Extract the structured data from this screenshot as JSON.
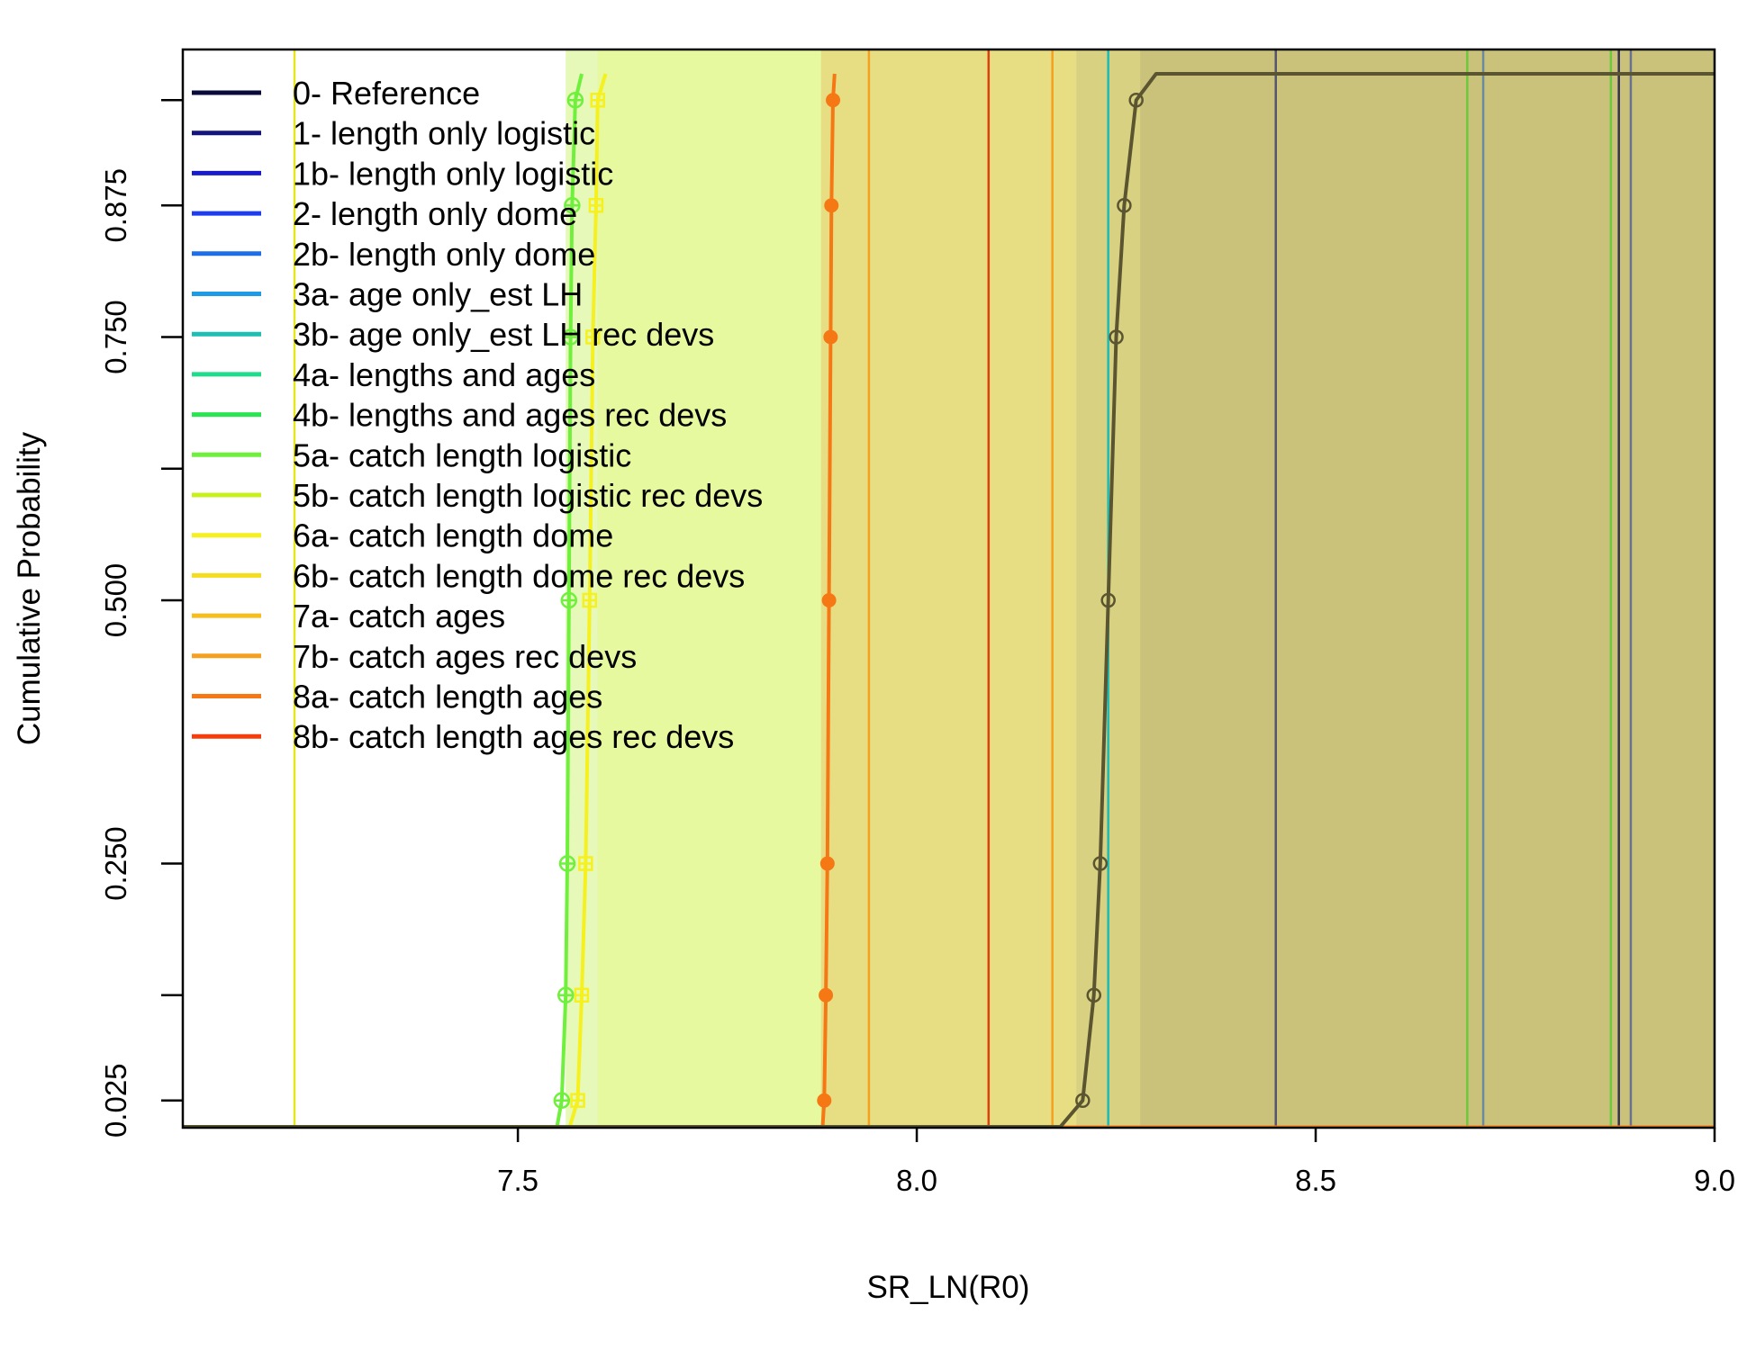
{
  "chart_data": {
    "type": "line",
    "title": "",
    "xlabel": "SR_LN(R0)",
    "ylabel": "Cumulative Probability",
    "xlim": [
      7.08,
      9.0
    ],
    "ylim": [
      0.0,
      1.0
    ],
    "xticks": [
      {
        "value": 7.5,
        "label": "7.5"
      },
      {
        "value": 8.0,
        "label": "8.0"
      },
      {
        "value": 8.5,
        "label": "8.5"
      },
      {
        "value": 9.0,
        "label": "9.0"
      }
    ],
    "yticks": [
      {
        "value": 0.025,
        "label": "0.025"
      },
      {
        "value": 0.125,
        "label": ""
      },
      {
        "value": 0.25,
        "label": "0.250"
      },
      {
        "value": 0.5,
        "label": "0.500"
      },
      {
        "value": 0.625,
        "label": ""
      },
      {
        "value": 0.75,
        "label": "0.750"
      },
      {
        "value": 0.875,
        "label": "0.875"
      },
      {
        "value": 0.975,
        "label": ""
      }
    ],
    "legend_position": "top-left",
    "legend": [
      {
        "label": "0- Reference",
        "color": "#0b0b3b"
      },
      {
        "label": "1- length only logistic",
        "color": "#14147a"
      },
      {
        "label": "1b- length only logistic",
        "color": "#1a1acd"
      },
      {
        "label": "2- length only dome",
        "color": "#1e3cf0"
      },
      {
        "label": "2b- length only dome",
        "color": "#1e6ee8"
      },
      {
        "label": "3a- age only_est LH",
        "color": "#1e9be6"
      },
      {
        "label": "3b- age only_est LH rec devs",
        "color": "#1ebeb4"
      },
      {
        "label": "4a- lengths and ages",
        "color": "#1edc8c"
      },
      {
        "label": "4b- lengths and ages rec devs",
        "color": "#28e650"
      },
      {
        "label": "5a- catch length logistic",
        "color": "#6ef03c"
      },
      {
        "label": "5b- catch length logistic rec devs",
        "color": "#c8f01e"
      },
      {
        "label": "6a- catch length dome",
        "color": "#f5f01e"
      },
      {
        "label": "6b- catch length dome rec devs",
        "color": "#f5dc1e"
      },
      {
        "label": "7a- catch ages",
        "color": "#f5be1e"
      },
      {
        "label": "7b- catch ages rec devs",
        "color": "#f5a01e"
      },
      {
        "label": "8a- catch length ages",
        "color": "#f57814"
      },
      {
        "label": "8b- catch length ages rec devs",
        "color": "#f53c0a"
      }
    ],
    "shaded_regions": [
      {
        "x0": 7.56,
        "x1": 9.0,
        "color": "#ddf7a0",
        "opacity": 0.75
      },
      {
        "x0": 7.6,
        "x1": 9.0,
        "color": "#e6f88c",
        "opacity": 0.6
      },
      {
        "x0": 7.88,
        "x1": 9.0,
        "color": "#e8c870",
        "opacity": 0.55
      },
      {
        "x0": 8.2,
        "x1": 9.0,
        "color": "#c8c080",
        "opacity": 0.45
      },
      {
        "x0": 8.28,
        "x1": 9.0,
        "color": "#b8b070",
        "opacity": 0.45
      }
    ],
    "vertical_lines": [
      {
        "x": 7.22,
        "color": "#e6e61e"
      },
      {
        "x": 7.94,
        "color": "#f5a01e"
      },
      {
        "x": 8.09,
        "color": "#e04010"
      },
      {
        "x": 8.17,
        "color": "#f5a01e"
      },
      {
        "x": 8.24,
        "color": "#6a8aa0"
      },
      {
        "x": 8.24,
        "color": "#1ebeb4"
      },
      {
        "x": 8.45,
        "color": "#555570"
      },
      {
        "x": 8.69,
        "color": "#6ec83c"
      },
      {
        "x": 8.71,
        "color": "#6a8aa0"
      },
      {
        "x": 8.87,
        "color": "#6ec83c"
      },
      {
        "x": 8.88,
        "color": "#333350"
      },
      {
        "x": 8.895,
        "color": "#6a7090"
      }
    ],
    "series": [
      {
        "name": "5a- catch length logistic",
        "color": "#6ef03c",
        "marker": "circle-plus",
        "points": [
          {
            "x": 7.549,
            "y": 0.0
          },
          {
            "x": 7.555,
            "y": 0.025
          },
          {
            "x": 7.56,
            "y": 0.125
          },
          {
            "x": 7.562,
            "y": 0.25
          },
          {
            "x": 7.564,
            "y": 0.5
          },
          {
            "x": 7.566,
            "y": 0.75
          },
          {
            "x": 7.568,
            "y": 0.875
          },
          {
            "x": 7.572,
            "y": 0.975
          },
          {
            "x": 7.58,
            "y": 1.0
          }
        ]
      },
      {
        "name": "6a- catch length dome",
        "color": "#f5f01e",
        "marker": "square-plus",
        "points": [
          {
            "x": 7.565,
            "y": 0.0
          },
          {
            "x": 7.575,
            "y": 0.025
          },
          {
            "x": 7.58,
            "y": 0.125
          },
          {
            "x": 7.585,
            "y": 0.25
          },
          {
            "x": 7.59,
            "y": 0.5
          },
          {
            "x": 7.594,
            "y": 0.75
          },
          {
            "x": 7.598,
            "y": 0.875
          },
          {
            "x": 7.6,
            "y": 0.975
          },
          {
            "x": 7.61,
            "y": 1.0
          }
        ]
      },
      {
        "name": "8a- catch length ages",
        "color": "#f57814",
        "marker": "filled-circle",
        "points": [
          {
            "x": 7.882,
            "y": 0.0
          },
          {
            "x": 7.884,
            "y": 0.025
          },
          {
            "x": 7.886,
            "y": 0.125
          },
          {
            "x": 7.888,
            "y": 0.25
          },
          {
            "x": 7.89,
            "y": 0.5
          },
          {
            "x": 7.892,
            "y": 0.75
          },
          {
            "x": 7.893,
            "y": 0.875
          },
          {
            "x": 7.895,
            "y": 0.975
          },
          {
            "x": 7.897,
            "y": 1.0
          }
        ]
      },
      {
        "name": "0- Reference",
        "color": "#5a5530",
        "marker": "open-circle",
        "points": [
          {
            "x": 7.08,
            "y": 0.0
          },
          {
            "x": 8.18,
            "y": 0.0
          },
          {
            "x": 8.208,
            "y": 0.025
          },
          {
            "x": 8.222,
            "y": 0.125
          },
          {
            "x": 8.23,
            "y": 0.25
          },
          {
            "x": 8.24,
            "y": 0.5
          },
          {
            "x": 8.25,
            "y": 0.75
          },
          {
            "x": 8.26,
            "y": 0.875
          },
          {
            "x": 8.275,
            "y": 0.975
          },
          {
            "x": 8.3,
            "y": 1.0
          },
          {
            "x": 9.0,
            "y": 1.0
          }
        ]
      }
    ],
    "baseline": {
      "y": 0.0,
      "color": "#f57814"
    }
  }
}
